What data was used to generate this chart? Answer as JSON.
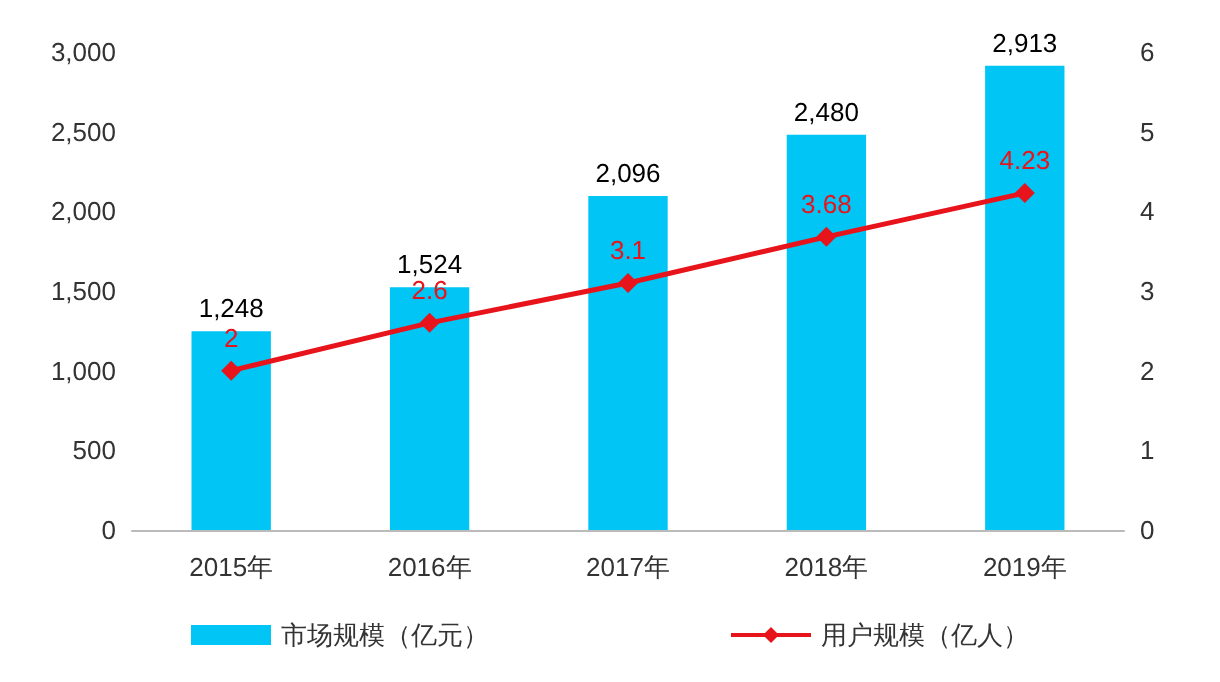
{
  "chart_data": {
    "type": "bar",
    "categories": [
      "2015年",
      "2016年",
      "2017年",
      "2018年",
      "2019年"
    ],
    "series": [
      {
        "name": "市场规模（亿元）",
        "color": "#00c5f5",
        "values": [
          1248,
          1524,
          2096,
          2480,
          2913
        ],
        "value_labels": [
          "1,248",
          "1,524",
          "2,096",
          "2,480",
          "2,913"
        ]
      },
      {
        "name": "用户规模（亿人）",
        "type": "line",
        "axis": "y2",
        "color": "#e8141b",
        "values": [
          2,
          2.6,
          3.1,
          3.68,
          4.23
        ],
        "marker": "diamond"
      }
    ],
    "data_labels": true,
    "ylim": [
      0,
      3000
    ],
    "yticks": [
      0,
      500,
      {
        "value": 1000,
        "label": "1,000"
      },
      {
        "value": 1500,
        "label": "1,500"
      },
      {
        "value": 2000,
        "label": "2,000"
      },
      {
        "value": 2500,
        "label": "2,500"
      },
      {
        "value": 3000,
        "label": "3,000"
      }
    ],
    "y2lim": [
      0,
      6
    ],
    "y2ticks": [
      0,
      1,
      2,
      3,
      4,
      5,
      6
    ],
    "grid": false,
    "legend": "bottom"
  }
}
